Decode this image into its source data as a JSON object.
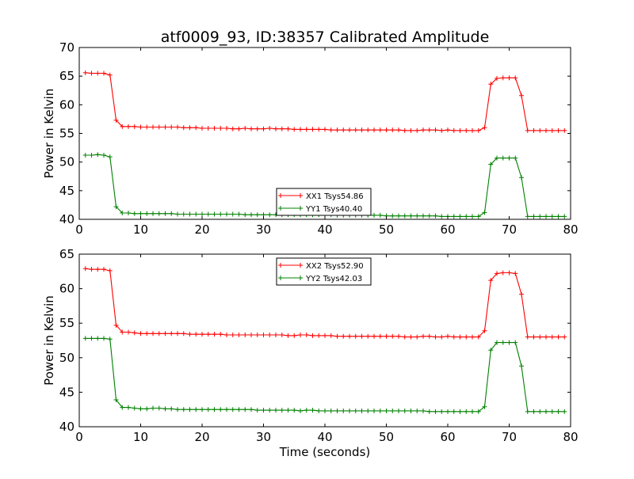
{
  "figure": {
    "title": "atf0009_93, ID:38357 Calibrated Amplitude"
  },
  "chart_data": [
    {
      "type": "line",
      "title": "atf0009_93, ID:38357 Calibrated Amplitude",
      "xlabel": "",
      "ylabel": "Power in Kelvin",
      "xlim": [
        0,
        80
      ],
      "ylim": [
        40,
        70
      ],
      "xticks": [
        "0",
        "10",
        "20",
        "30",
        "40",
        "50",
        "60",
        "70",
        "80"
      ],
      "yticks": [
        "40",
        "45",
        "50",
        "55",
        "60",
        "65",
        "70"
      ],
      "grid": false,
      "legend_position": "lower-center",
      "x": [
        1,
        2,
        3,
        4,
        5,
        6,
        7,
        8,
        9,
        10,
        11,
        12,
        13,
        14,
        15,
        16,
        17,
        18,
        19,
        20,
        21,
        22,
        23,
        24,
        25,
        26,
        27,
        28,
        29,
        30,
        31,
        32,
        33,
        34,
        35,
        36,
        37,
        38,
        39,
        40,
        41,
        42,
        43,
        44,
        45,
        46,
        47,
        48,
        49,
        50,
        51,
        52,
        53,
        54,
        55,
        56,
        57,
        58,
        59,
        60,
        61,
        62,
        63,
        64,
        65,
        66,
        67,
        68,
        69,
        70,
        71,
        72,
        73,
        74,
        75,
        76,
        77,
        78,
        79
      ],
      "series": [
        {
          "name": "XX1 Tsys54.86",
          "color": "#ff0000",
          "values": [
            65.6,
            65.5,
            65.5,
            65.5,
            65.2,
            57.3,
            56.2,
            56.2,
            56.2,
            56.1,
            56.1,
            56.1,
            56.1,
            56.1,
            56.1,
            56.1,
            56.0,
            56.0,
            56.0,
            55.9,
            55.9,
            55.9,
            55.9,
            55.9,
            55.8,
            55.8,
            55.9,
            55.8,
            55.8,
            55.8,
            55.9,
            55.8,
            55.8,
            55.8,
            55.7,
            55.7,
            55.7,
            55.7,
            55.7,
            55.7,
            55.6,
            55.6,
            55.6,
            55.6,
            55.6,
            55.6,
            55.6,
            55.6,
            55.6,
            55.6,
            55.6,
            55.6,
            55.5,
            55.5,
            55.5,
            55.6,
            55.6,
            55.6,
            55.5,
            55.6,
            55.5,
            55.5,
            55.5,
            55.5,
            55.5,
            56.0,
            63.6,
            64.6,
            64.7,
            64.7,
            64.7,
            61.6,
            55.5,
            55.5,
            55.5,
            55.5,
            55.5,
            55.5,
            55.5
          ]
        },
        {
          "name": "YY1 Tsys40.40",
          "color": "#008000",
          "values": [
            51.2,
            51.2,
            51.3,
            51.2,
            50.9,
            42.2,
            41.1,
            41.1,
            41.0,
            41.0,
            41.0,
            41.0,
            41.0,
            41.0,
            41.0,
            40.9,
            40.9,
            40.9,
            40.9,
            40.9,
            40.9,
            40.9,
            40.9,
            40.9,
            40.9,
            40.9,
            40.8,
            40.8,
            40.8,
            40.8,
            40.8,
            40.8,
            40.8,
            40.8,
            40.8,
            40.8,
            40.8,
            40.8,
            40.8,
            40.8,
            40.8,
            40.7,
            40.7,
            40.7,
            40.7,
            40.7,
            40.7,
            40.7,
            40.7,
            40.6,
            40.6,
            40.6,
            40.6,
            40.6,
            40.6,
            40.6,
            40.6,
            40.6,
            40.5,
            40.5,
            40.5,
            40.5,
            40.5,
            40.5,
            40.5,
            41.2,
            49.6,
            50.7,
            50.7,
            50.7,
            50.7,
            47.3,
            40.5,
            40.5,
            40.5,
            40.5,
            40.5,
            40.5,
            40.5
          ]
        }
      ]
    },
    {
      "type": "line",
      "title": "",
      "xlabel": "Time (seconds)",
      "ylabel": "Power in Kelvin",
      "xlim": [
        0,
        80
      ],
      "ylim": [
        40,
        65
      ],
      "xticks": [
        "0",
        "10",
        "20",
        "30",
        "40",
        "50",
        "60",
        "70",
        "80"
      ],
      "yticks": [
        "40",
        "45",
        "50",
        "55",
        "60",
        "65"
      ],
      "grid": false,
      "legend_position": "upper-center",
      "x": [
        1,
        2,
        3,
        4,
        5,
        6,
        7,
        8,
        9,
        10,
        11,
        12,
        13,
        14,
        15,
        16,
        17,
        18,
        19,
        20,
        21,
        22,
        23,
        24,
        25,
        26,
        27,
        28,
        29,
        30,
        31,
        32,
        33,
        34,
        35,
        36,
        37,
        38,
        39,
        40,
        41,
        42,
        43,
        44,
        45,
        46,
        47,
        48,
        49,
        50,
        51,
        52,
        53,
        54,
        55,
        56,
        57,
        58,
        59,
        60,
        61,
        62,
        63,
        64,
        65,
        66,
        67,
        68,
        69,
        70,
        71,
        72,
        73,
        74,
        75,
        76,
        77,
        78,
        79
      ],
      "series": [
        {
          "name": "XX2 Tsys52.90",
          "color": "#ff0000",
          "values": [
            62.9,
            62.8,
            62.8,
            62.8,
            62.6,
            54.7,
            53.7,
            53.7,
            53.6,
            53.5,
            53.5,
            53.5,
            53.5,
            53.5,
            53.5,
            53.5,
            53.5,
            53.4,
            53.4,
            53.4,
            53.4,
            53.4,
            53.4,
            53.3,
            53.3,
            53.3,
            53.3,
            53.3,
            53.3,
            53.3,
            53.3,
            53.3,
            53.3,
            53.2,
            53.2,
            53.3,
            53.3,
            53.2,
            53.2,
            53.2,
            53.2,
            53.1,
            53.1,
            53.1,
            53.1,
            53.1,
            53.1,
            53.1,
            53.1,
            53.1,
            53.1,
            53.1,
            53.0,
            53.0,
            53.0,
            53.1,
            53.1,
            53.0,
            53.0,
            53.1,
            53.0,
            53.0,
            53.0,
            53.0,
            53.0,
            53.9,
            61.2,
            62.2,
            62.3,
            62.3,
            62.2,
            59.2,
            53.0,
            53.0,
            53.0,
            53.0,
            53.0,
            53.0,
            53.0
          ]
        },
        {
          "name": "YY2 Tsys42.03",
          "color": "#008000",
          "values": [
            52.8,
            52.8,
            52.8,
            52.8,
            52.7,
            43.9,
            42.8,
            42.8,
            42.7,
            42.6,
            42.6,
            42.7,
            42.7,
            42.6,
            42.6,
            42.5,
            42.5,
            42.5,
            42.5,
            42.5,
            42.5,
            42.5,
            42.5,
            42.5,
            42.5,
            42.5,
            42.5,
            42.5,
            42.4,
            42.4,
            42.4,
            42.4,
            42.4,
            42.4,
            42.4,
            42.3,
            42.4,
            42.4,
            42.3,
            42.3,
            42.3,
            42.3,
            42.3,
            42.3,
            42.3,
            42.3,
            42.3,
            42.3,
            42.3,
            42.3,
            42.3,
            42.3,
            42.3,
            42.3,
            42.3,
            42.3,
            42.2,
            42.2,
            42.2,
            42.2,
            42.2,
            42.2,
            42.2,
            42.2,
            42.2,
            42.9,
            51.1,
            52.2,
            52.2,
            52.2,
            52.2,
            48.8,
            42.2,
            42.2,
            42.2,
            42.2,
            42.2,
            42.2,
            42.2
          ]
        }
      ]
    }
  ]
}
